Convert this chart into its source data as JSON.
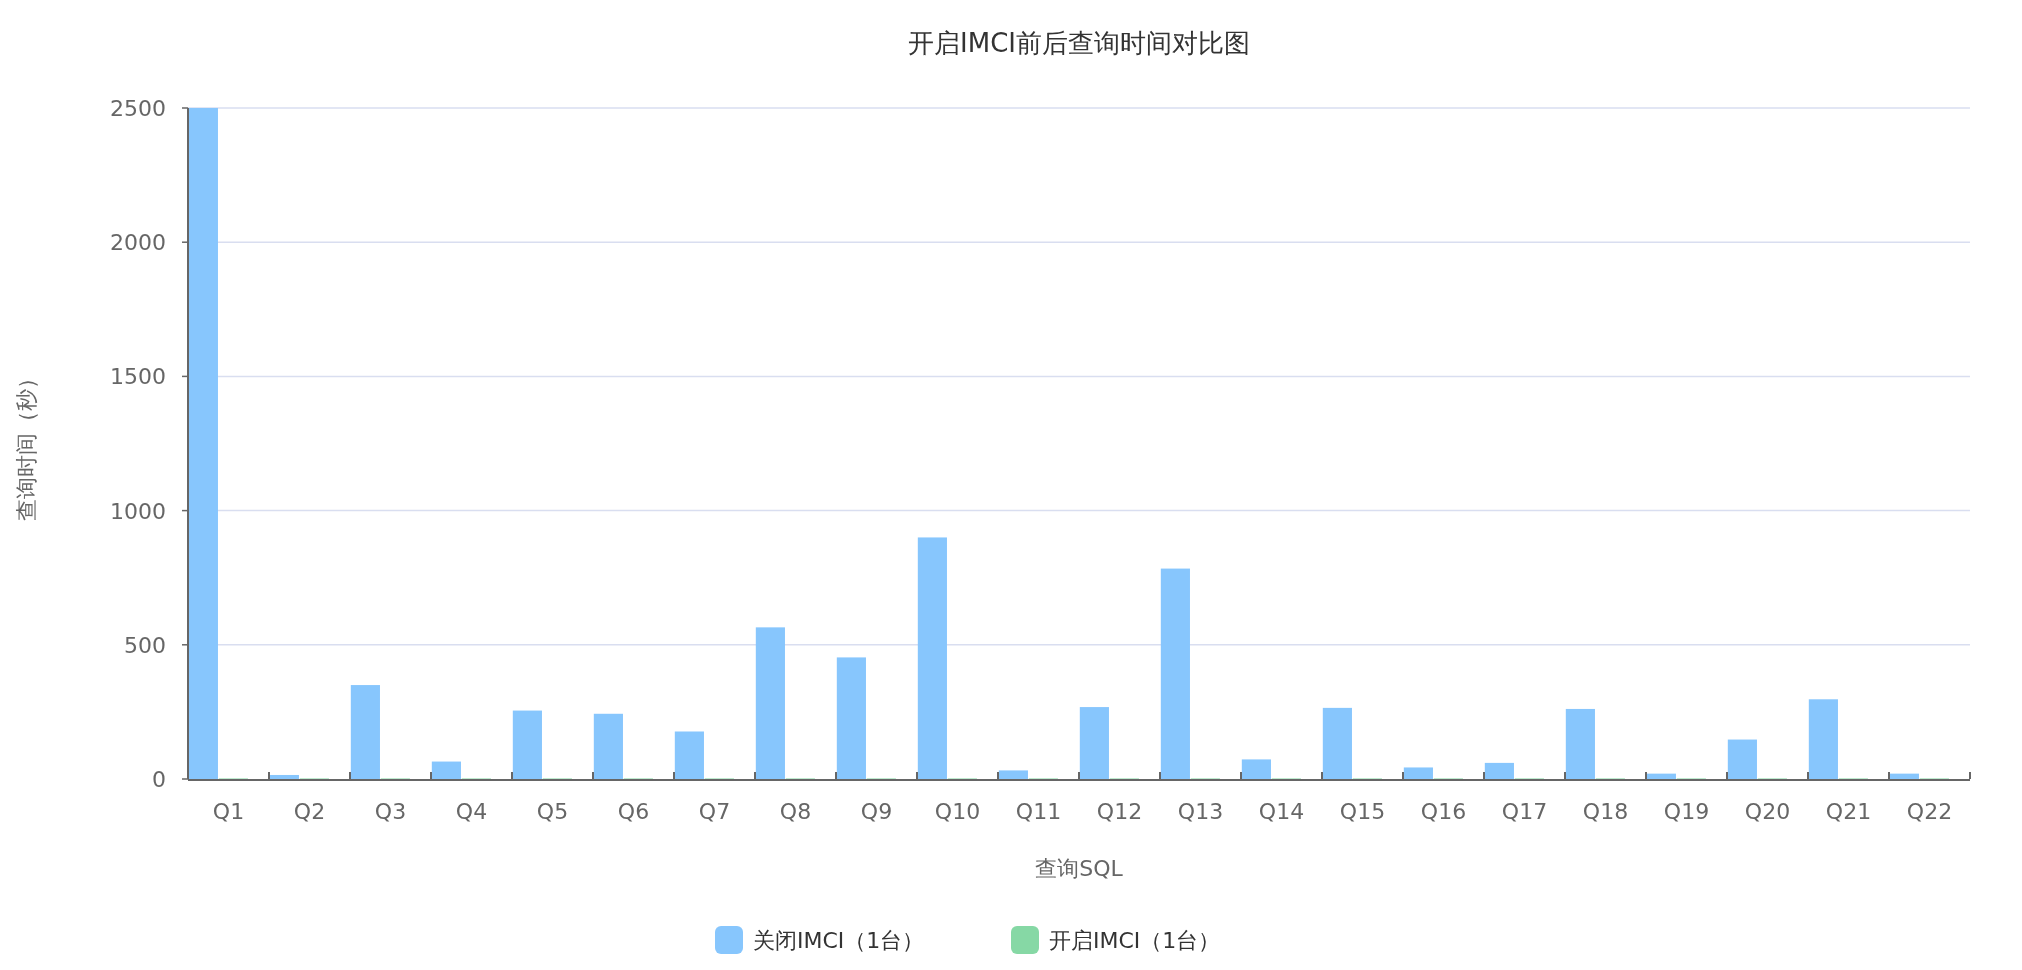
{
  "chart_data": {
    "type": "bar",
    "title": "开启IMCI前后查询时间对比图",
    "xlabel": "查询SQL",
    "ylabel": "查询时间（秒）",
    "categories": [
      "Q1",
      "Q2",
      "Q3",
      "Q4",
      "Q5",
      "Q6",
      "Q7",
      "Q8",
      "Q9",
      "Q10",
      "Q11",
      "Q12",
      "Q13",
      "Q14",
      "Q15",
      "Q16",
      "Q17",
      "Q18",
      "Q19",
      "Q20",
      "Q21",
      "Q22"
    ],
    "series": [
      {
        "name": "关闭IMCI（1台）",
        "color": "#87c6fd",
        "values": [
          2500,
          15,
          350,
          65,
          255,
          243,
          177,
          565,
          453,
          900,
          32,
          268,
          784,
          73,
          265,
          43,
          60,
          261,
          20,
          147,
          297,
          20
        ]
      },
      {
        "name": "开启IMCI（1台）",
        "color": "#86d8a5",
        "values": [
          2,
          2,
          2,
          2,
          2,
          2,
          2,
          2,
          2,
          2,
          2,
          2,
          2,
          2,
          2,
          2,
          2,
          2,
          2,
          2,
          2,
          2
        ]
      }
    ],
    "ylim": [
      0,
      2500
    ],
    "yticks": [
      0,
      500,
      1000,
      1500,
      2000,
      2500
    ],
    "grid": "y",
    "legend": "bottom"
  }
}
